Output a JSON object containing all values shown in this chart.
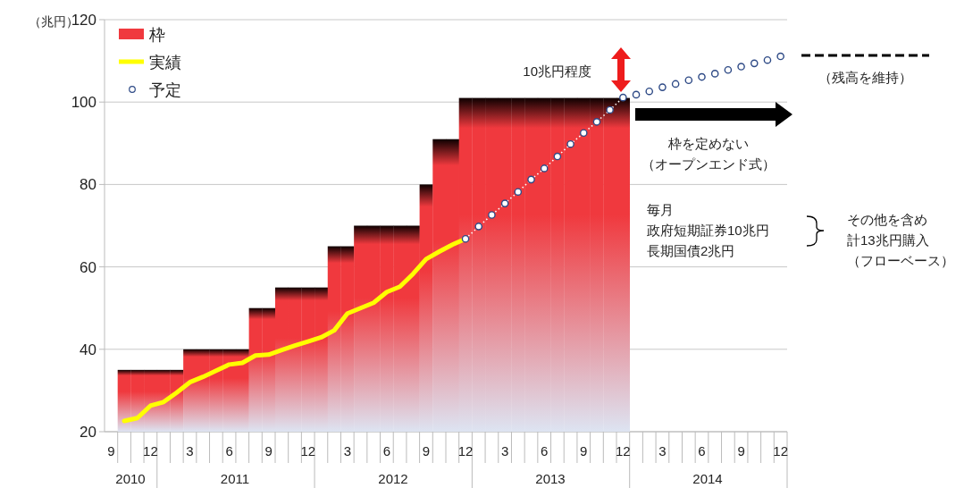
{
  "chart_data": {
    "type": "bar",
    "ylabel": "（兆円）",
    "ylim": [
      20,
      120
    ],
    "yticks": [
      20,
      40,
      60,
      80,
      100,
      120
    ],
    "grid": "y",
    "legend": "top left",
    "categories": [
      "9",
      null,
      null,
      "12",
      null,
      null,
      "3",
      null,
      null,
      "6",
      null,
      null,
      "9",
      null,
      null,
      "12",
      null,
      null,
      "3",
      null,
      null,
      "6",
      null,
      null,
      "9",
      null,
      null,
      "12",
      null,
      null,
      "3",
      null,
      null,
      "6",
      null,
      null,
      "9",
      null,
      null,
      "12",
      null,
      null,
      "3",
      null,
      null,
      "6",
      null,
      null,
      "9",
      null,
      null,
      "12"
    ],
    "series": [
      {
        "name": "枠",
        "color": "#f0393e",
        "values": [
          null,
          35,
          35,
          35,
          35,
          35,
          40,
          40,
          40,
          40,
          40,
          50,
          50,
          55,
          55,
          55,
          55,
          65,
          65,
          70,
          70,
          70,
          70,
          70,
          80,
          91,
          91,
          101,
          101,
          101,
          101,
          101,
          101,
          101,
          101,
          101,
          101,
          101,
          101,
          101,
          null,
          null,
          null,
          null,
          null,
          null,
          null,
          null,
          null,
          null,
          null,
          null
        ]
      },
      {
        "name": "実績",
        "type": "line",
        "color": "#ffff00",
        "marker": "none",
        "line_style": "solid",
        "values": [
          null,
          22.6,
          23.3,
          26.3,
          27.2,
          29.5,
          32,
          33.3,
          34.8,
          36.3,
          36.7,
          38.5,
          38.7,
          39.8,
          40.9,
          41.9,
          42.9,
          44.6,
          48.7,
          50,
          51.3,
          53.9,
          55.2,
          58.3,
          61.9,
          63.7,
          65.4,
          66.8,
          null,
          null,
          null,
          null,
          null,
          null,
          null,
          null,
          null,
          null,
          null,
          null,
          null,
          null,
          null,
          null,
          null,
          null,
          null,
          null,
          null,
          null,
          null,
          null
        ]
      },
      {
        "name": "予定",
        "type": "line",
        "color": "#2e4a86",
        "marker": "circle",
        "line_style": "dotted",
        "values": [
          null,
          null,
          null,
          null,
          null,
          null,
          null,
          null,
          null,
          null,
          null,
          null,
          null,
          null,
          null,
          null,
          null,
          null,
          null,
          null,
          null,
          null,
          null,
          null,
          null,
          null,
          null,
          66.8,
          69.8,
          72.6,
          75.4,
          78.2,
          81.2,
          83.9,
          86.8,
          89.8,
          92.5,
          95.2,
          98.1,
          101.1,
          101.8,
          102.6,
          103.6,
          104.4,
          105.3,
          106.1,
          106.9,
          107.8,
          108.6,
          109.4,
          110.2,
          111.1
        ]
      }
    ],
    "ref_lines": [
      {
        "axis": "y",
        "value": 111.3,
        "label": "（残高を維持）",
        "color": "#000000",
        "line_style": "dashed"
      }
    ],
    "annotations": [
      "10兆円程度",
      "枠を定めない",
      "（オープンエンド式）",
      "毎月",
      "政府短期証券10兆円",
      "長期国債2兆円",
      "その他を含め",
      "計13兆円購入",
      "（フローベース）",
      "2010",
      "2011",
      "2012",
      "2013",
      "2014"
    ]
  }
}
